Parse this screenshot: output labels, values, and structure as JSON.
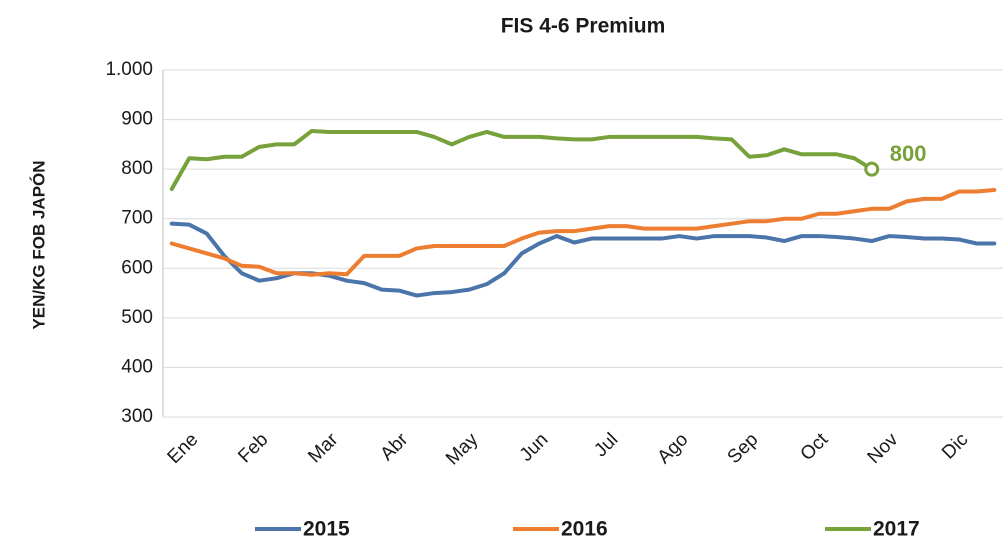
{
  "chart_data": {
    "type": "line",
    "title": "FIS 4-6 Premium",
    "y_label": "YEN/KG FOB JAPÓN",
    "categories": [
      null,
      "Ene",
      null,
      null,
      null,
      "Feb",
      null,
      null,
      null,
      "Mar",
      null,
      null,
      null,
      "Abr",
      null,
      null,
      null,
      "May",
      null,
      null,
      null,
      "Jun",
      null,
      null,
      null,
      "Jul",
      null,
      null,
      null,
      "Ago",
      null,
      null,
      null,
      "Sep",
      null,
      null,
      null,
      "Oct",
      null,
      null,
      null,
      "Nov",
      null,
      null,
      null,
      "Dic",
      null,
      null
    ],
    "ylim": [
      300,
      1000
    ],
    "yticks": [
      300,
      400,
      500,
      600,
      700,
      800,
      900,
      {
        "value": 1000,
        "label": "1.000"
      }
    ],
    "grid": true,
    "legend": "bottom",
    "series": [
      {
        "name": "2015",
        "color": "#4a74aa",
        "values": [
          690,
          688,
          670,
          625,
          590,
          575,
          580,
          590,
          590,
          585,
          575,
          570,
          557,
          555,
          545,
          550,
          552,
          557,
          568,
          590,
          630,
          650,
          665,
          652,
          660,
          660,
          660,
          660,
          660,
          665,
          660,
          665,
          665,
          665,
          662,
          655,
          665,
          665,
          663,
          660,
          655,
          665,
          663,
          660,
          660,
          658,
          650,
          650
        ]
      },
      {
        "name": "2016",
        "color": "#ed7d31",
        "values": [
          650,
          640,
          630,
          620,
          605,
          603,
          590,
          590,
          587,
          590,
          588,
          625,
          625,
          625,
          640,
          645,
          645,
          645,
          645,
          645,
          660,
          672,
          675,
          675,
          680,
          685,
          685,
          680,
          680,
          680,
          680,
          685,
          690,
          695,
          695,
          700,
          700,
          710,
          710,
          715,
          720,
          720,
          735,
          740,
          740,
          755,
          755,
          758
        ]
      },
      {
        "name": "2017",
        "color": "#77a13a",
        "end_label": true,
        "values": [
          760,
          822,
          820,
          825,
          825,
          845,
          850,
          850,
          877,
          875,
          875,
          875,
          875,
          875,
          875,
          865,
          850,
          865,
          875,
          865,
          865,
          865,
          862,
          860,
          860,
          865,
          865,
          865,
          865,
          865,
          865,
          862,
          860,
          825,
          828,
          840,
          830,
          830,
          830,
          822,
          800,
          null,
          null,
          null,
          null,
          null,
          null,
          null
        ]
      }
    ]
  }
}
